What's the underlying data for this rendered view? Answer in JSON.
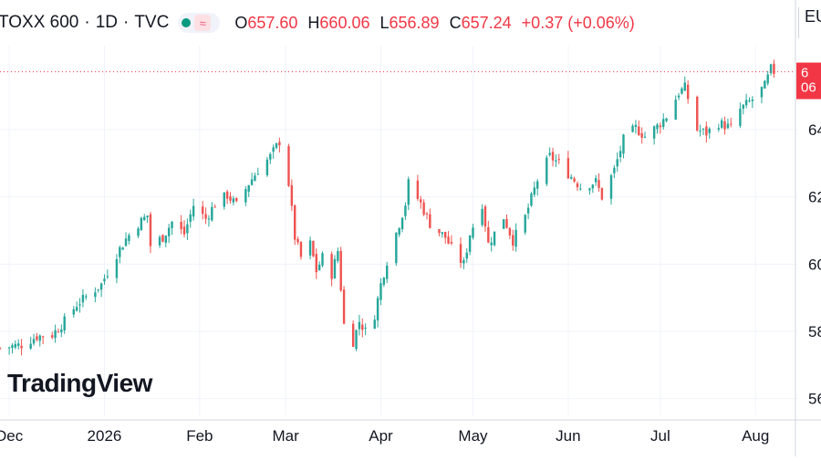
{
  "header": {
    "symbol": "TOXX 600",
    "interval": "1D",
    "source": "TVC",
    "separator": "·",
    "open_label": "O",
    "open": "657.60",
    "high_label": "H",
    "high": "660.06",
    "low_label": "L",
    "low": "656.89",
    "close_label": "C",
    "close": "657.24",
    "change": "+0.37 (+0.06%)",
    "status_icon": "market-open-dot",
    "chart_type_icon": "wave-icon"
  },
  "price_axis": {
    "currency_label": "EU",
    "price_tag_lines": [
      "6",
      "06"
    ]
  },
  "logo": {
    "text": "TradingView"
  },
  "colors": {
    "up": "#26a69a",
    "down": "#ef5350",
    "grid": "#f0f3fa",
    "axis_text": "#131722",
    "price_tag": "#f23645"
  },
  "chart_data": {
    "type": "candlestick",
    "x_range": [
      "2025-11-28",
      "2026-08-14"
    ],
    "ylim": [
      555,
      665
    ],
    "y_ticks": [
      560,
      580,
      600,
      620,
      640
    ],
    "y_tick_labels": [
      "56",
      "58",
      "60",
      "62",
      "64"
    ],
    "x_tick_labels": [
      {
        "label": "Dec",
        "date": "2025-12-01"
      },
      {
        "label": "2026",
        "date": "2026-01-01"
      },
      {
        "label": "Feb",
        "date": "2026-02-01"
      },
      {
        "label": "Mar",
        "date": "2026-03-01"
      },
      {
        "label": "Apr",
        "date": "2026-04-01"
      },
      {
        "label": "May",
        "date": "2026-05-01"
      },
      {
        "label": "Jun",
        "date": "2026-06-01"
      },
      {
        "label": "Jul",
        "date": "2026-07-01"
      },
      {
        "label": "Aug",
        "date": "2026-08-01"
      }
    ],
    "last_price": 657.24,
    "close_path": [
      [
        "2025-11-28",
        575.0
      ],
      [
        "2025-12-05",
        576.0
      ],
      [
        "2025-12-10",
        578.5
      ],
      [
        "2025-12-15",
        579.0
      ],
      [
        "2025-12-19",
        583.0
      ],
      [
        "2025-12-23",
        588.0
      ],
      [
        "2025-12-31",
        594.0
      ],
      [
        "2026-01-05",
        603.0
      ],
      [
        "2026-01-08",
        607.5
      ],
      [
        "2026-01-12",
        612.0
      ],
      [
        "2026-01-15",
        614.5
      ],
      [
        "2026-01-16",
        605.5
      ],
      [
        "2026-01-20",
        608.0
      ],
      [
        "2026-01-23",
        612.5
      ],
      [
        "2026-01-27",
        609.0
      ],
      [
        "2026-01-30",
        617.5
      ],
      [
        "2026-02-03",
        613.5
      ],
      [
        "2026-02-06",
        618.0
      ],
      [
        "2026-02-10",
        620.5
      ],
      [
        "2026-02-13",
        617.5
      ],
      [
        "2026-02-17",
        624.0
      ],
      [
        "2026-02-20",
        628.0
      ],
      [
        "2026-02-24",
        632.0
      ],
      [
        "2026-02-27",
        636.5
      ],
      [
        "2026-03-02",
        624.0
      ],
      [
        "2026-03-04",
        608.0
      ],
      [
        "2026-03-06",
        602.0
      ],
      [
        "2026-03-09",
        606.0
      ],
      [
        "2026-03-11",
        598.0
      ],
      [
        "2026-03-13",
        602.0
      ],
      [
        "2026-03-16",
        597.0
      ],
      [
        "2026-03-18",
        604.0
      ],
      [
        "2026-03-20",
        582.0
      ],
      [
        "2026-03-23",
        577.0
      ],
      [
        "2026-03-25",
        583.0
      ],
      [
        "2026-03-27",
        580.0
      ],
      [
        "2026-03-30",
        585.0
      ],
      [
        "2026-04-01",
        594.0
      ],
      [
        "2026-04-03",
        601.0
      ],
      [
        "2026-04-07",
        612.0
      ],
      [
        "2026-04-09",
        618.0
      ],
      [
        "2026-04-10",
        624.0
      ],
      [
        "2026-04-14",
        618.0
      ],
      [
        "2026-04-17",
        612.0
      ],
      [
        "2026-04-22",
        608.0
      ],
      [
        "2026-04-25",
        603.0
      ],
      [
        "2026-04-28",
        600.0
      ],
      [
        "2026-04-30",
        609.0
      ],
      [
        "2026-05-04",
        618.0
      ],
      [
        "2026-05-06",
        606.0
      ],
      [
        "2026-05-11",
        614.0
      ],
      [
        "2026-05-14",
        607.0
      ],
      [
        "2026-05-18",
        614.0
      ],
      [
        "2026-05-22",
        625.0
      ],
      [
        "2026-05-26",
        632.0
      ],
      [
        "2026-05-29",
        630.0
      ],
      [
        "2026-06-02",
        626.0
      ],
      [
        "2026-06-05",
        623.0
      ],
      [
        "2026-06-10",
        624.5
      ],
      [
        "2026-06-12",
        620.0
      ],
      [
        "2026-06-16",
        628.0
      ],
      [
        "2026-06-19",
        637.0
      ],
      [
        "2026-06-23",
        640.5
      ],
      [
        "2026-06-26",
        638.0
      ],
      [
        "2026-06-30",
        641.0
      ],
      [
        "2026-07-03",
        644.0
      ],
      [
        "2026-07-07",
        651.0
      ],
      [
        "2026-07-09",
        652.5
      ],
      [
        "2026-07-13",
        640.0
      ],
      [
        "2026-07-16",
        639.0
      ],
      [
        "2026-07-20",
        642.0
      ],
      [
        "2026-07-24",
        640.5
      ],
      [
        "2026-07-27",
        646.0
      ],
      [
        "2026-07-31",
        649.0
      ],
      [
        "2026-08-04",
        653.0
      ],
      [
        "2026-08-06",
        658.0
      ],
      [
        "2026-08-07",
        657.24
      ]
    ]
  }
}
